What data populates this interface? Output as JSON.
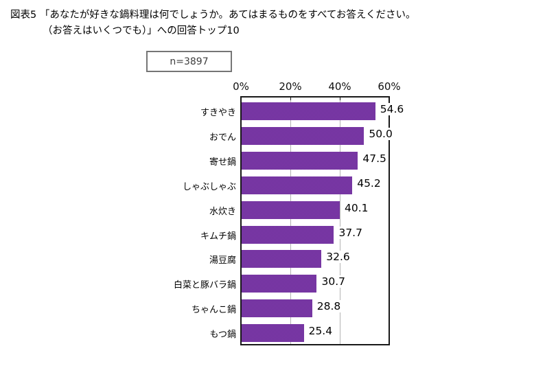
{
  "title": {
    "line1": "図表5 「あなたが好きな鍋料理は何でしょうか。あてはまるものをすべてお答えください。",
    "line2": "（お答えはいくつでも）」への回答トップ10"
  },
  "sample_size_label": "n=3897",
  "chart_data": {
    "type": "bar",
    "orientation": "horizontal",
    "title": "「あなたが好きな鍋料理は何でしょうか。あてはまるものをすべてお答えください。（お答えはいくつでも）」への回答トップ10",
    "sample_size": "n=3897",
    "categories": [
      "すきやき",
      "おでん",
      "寄せ鍋",
      "しゃぶしゃぶ",
      "水炊き",
      "キムチ鍋",
      "湯豆腐",
      "白菜と豚バラ鍋",
      "ちゃんこ鍋",
      "もつ鍋"
    ],
    "values": [
      54.6,
      50.0,
      47.5,
      45.2,
      40.1,
      37.7,
      32.6,
      30.7,
      28.8,
      25.4
    ],
    "value_labels": [
      "54.6",
      "50.0",
      "47.5",
      "45.2",
      "40.1",
      "37.7",
      "32.6",
      "30.7",
      "28.8",
      "25.4"
    ],
    "xlabel": "",
    "ylabel": "",
    "xlim": [
      0,
      60
    ],
    "x_ticks": [
      "0%",
      "20%",
      "40%",
      "60%"
    ],
    "x_tick_values": [
      0,
      20,
      40,
      60
    ],
    "gridline_values": [
      20,
      40
    ],
    "grid": "vertical-light-gray",
    "legend": "none",
    "axis_position": "top",
    "bar_color": "#7736A3",
    "grid_color": "#b3b3b3",
    "border_color": "#181818"
  }
}
